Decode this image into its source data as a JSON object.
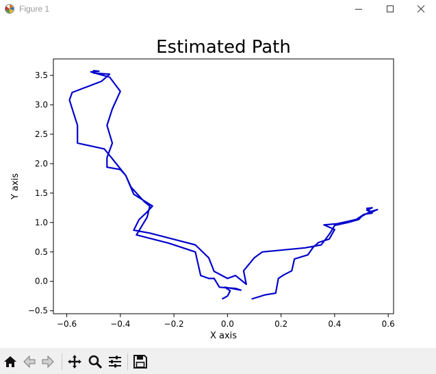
{
  "window": {
    "title": "Figure 1"
  },
  "toolbar": {
    "buttons": [
      {
        "name": "home-icon"
      },
      {
        "name": "back-icon"
      },
      {
        "name": "forward-icon"
      },
      {
        "name": "pan-icon"
      },
      {
        "name": "zoom-icon"
      },
      {
        "name": "configure-subplots-icon"
      },
      {
        "name": "save-icon"
      }
    ]
  },
  "chart_data": {
    "type": "line",
    "title": "Estimated Path",
    "xlabel": "X axis",
    "ylabel": "Y axis",
    "xlim": [
      -0.65,
      0.62
    ],
    "ylim": [
      -0.55,
      3.78
    ],
    "xticks": [
      -0.6,
      -0.4,
      -0.2,
      0.0,
      0.2,
      0.4,
      0.6
    ],
    "xtick_labels": [
      "−0.6",
      "−0.4",
      "−0.2",
      "0.0",
      "0.2",
      "0.4",
      "0.6"
    ],
    "yticks": [
      -0.5,
      0.0,
      0.5,
      1.0,
      1.5,
      2.0,
      2.5,
      3.0,
      3.5
    ],
    "ytick_labels": [
      "−0.5",
      "0.0",
      "0.5",
      "1.0",
      "1.5",
      "2.0",
      "2.5",
      "3.0",
      "3.5"
    ],
    "grid": false,
    "line_color": "#0000cc",
    "series": [
      {
        "points": [
          [
            -0.02,
            -0.3
          ],
          [
            0.0,
            -0.25
          ],
          [
            0.01,
            -0.16
          ],
          [
            -0.01,
            -0.1
          ],
          [
            0.05,
            -0.15
          ],
          [
            0.03,
            -0.12
          ],
          [
            -0.03,
            -0.1
          ],
          [
            -0.05,
            0.05
          ],
          [
            -0.07,
            0.05
          ],
          [
            -0.1,
            0.1
          ],
          [
            -0.12,
            0.5
          ],
          [
            -0.22,
            0.65
          ],
          [
            -0.34,
            0.79
          ],
          [
            -0.3,
            1.09
          ],
          [
            -0.29,
            1.28
          ],
          [
            -0.31,
            1.35
          ],
          [
            -0.36,
            1.6
          ],
          [
            -0.38,
            1.8
          ],
          [
            -0.4,
            1.9
          ],
          [
            -0.45,
            1.94
          ],
          [
            -0.45,
            2.1
          ],
          [
            -0.43,
            2.35
          ],
          [
            -0.45,
            2.65
          ],
          [
            -0.43,
            2.93
          ],
          [
            -0.4,
            3.23
          ],
          [
            -0.44,
            3.47
          ],
          [
            -0.48,
            3.52
          ],
          [
            -0.51,
            3.56
          ],
          [
            -0.48,
            3.57
          ],
          [
            -0.5,
            3.58
          ],
          [
            -0.5,
            3.54
          ],
          [
            -0.44,
            3.52
          ],
          [
            -0.47,
            3.4
          ],
          [
            -0.58,
            3.21
          ],
          [
            -0.59,
            3.08
          ],
          [
            -0.56,
            2.65
          ],
          [
            -0.56,
            2.35
          ],
          [
            -0.46,
            2.25
          ],
          [
            -0.44,
            2.14
          ],
          [
            -0.41,
            1.97
          ],
          [
            -0.38,
            1.8
          ],
          [
            -0.35,
            1.48
          ],
          [
            -0.28,
            1.28
          ],
          [
            -0.3,
            1.18
          ],
          [
            -0.33,
            1.05
          ],
          [
            -0.35,
            0.87
          ],
          [
            -0.29,
            0.82
          ],
          [
            -0.12,
            0.62
          ],
          [
            -0.07,
            0.4
          ],
          [
            -0.05,
            0.17
          ],
          [
            0.0,
            0.05
          ],
          [
            0.03,
            0.1
          ],
          [
            0.07,
            -0.05
          ],
          [
            0.06,
            0.18
          ],
          [
            0.1,
            0.4
          ],
          [
            0.13,
            0.5
          ],
          [
            0.2,
            0.53
          ],
          [
            0.29,
            0.57
          ],
          [
            0.35,
            0.62
          ],
          [
            0.38,
            0.8
          ],
          [
            0.39,
            0.87
          ],
          [
            0.4,
            0.95
          ],
          [
            0.45,
            1.0
          ],
          [
            0.49,
            1.05
          ],
          [
            0.5,
            1.1
          ],
          [
            0.53,
            1.18
          ],
          [
            0.56,
            1.22
          ],
          [
            0.54,
            1.18
          ],
          [
            0.52,
            1.21
          ],
          [
            0.54,
            1.25
          ],
          [
            0.52,
            1.24
          ],
          [
            0.54,
            1.16
          ],
          [
            0.51,
            1.14
          ],
          [
            0.48,
            1.05
          ],
          [
            0.41,
            0.98
          ],
          [
            0.36,
            0.96
          ],
          [
            0.39,
            0.9
          ],
          [
            0.4,
            0.88
          ],
          [
            0.38,
            0.72
          ],
          [
            0.34,
            0.66
          ],
          [
            0.32,
            0.58
          ],
          [
            0.3,
            0.45
          ],
          [
            0.25,
            0.38
          ],
          [
            0.24,
            0.18
          ],
          [
            0.21,
            0.11
          ],
          [
            0.19,
            0.05
          ],
          [
            0.18,
            -0.2
          ],
          [
            0.14,
            -0.23
          ],
          [
            0.09,
            -0.3
          ]
        ]
      }
    ]
  }
}
